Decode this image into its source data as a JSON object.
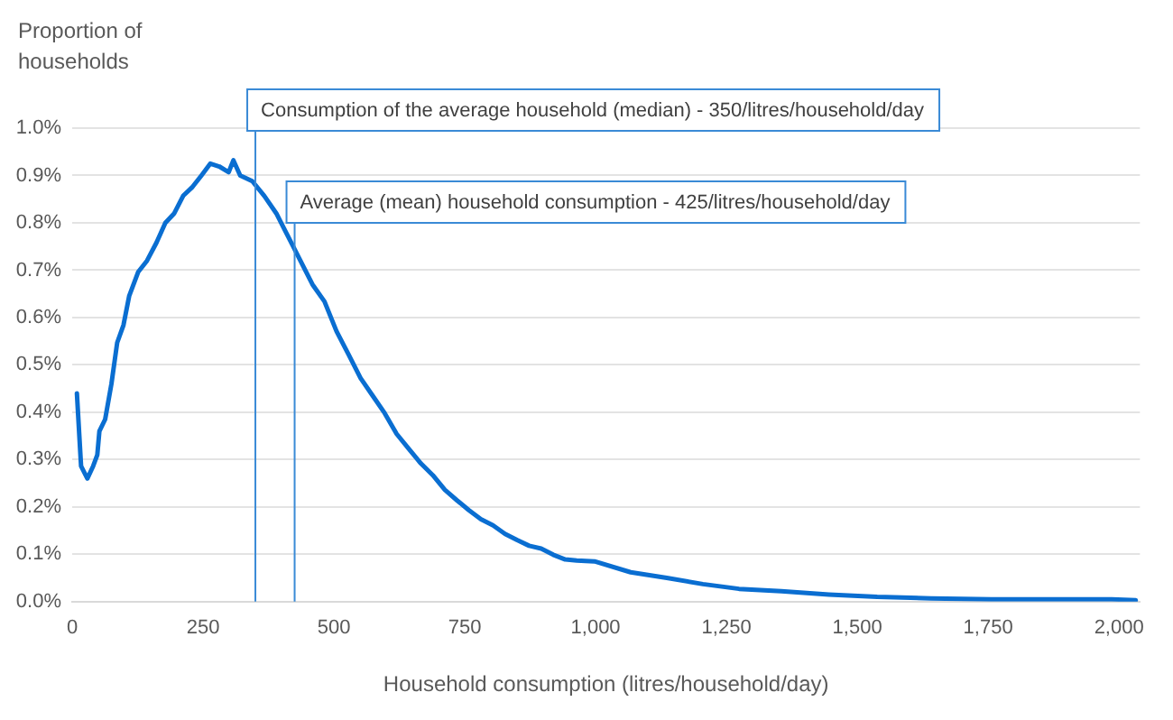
{
  "chart_data": {
    "type": "line",
    "ylabel": "Proportion of\nhouseholds",
    "xlabel": "Household consumption (litres/household/day)",
    "series": [
      {
        "color": "#0a6ed1",
        "x": [
          9,
          17,
          29,
          40,
          48,
          52,
          63,
          75,
          86,
          98,
          109,
          126,
          143,
          161,
          178,
          195,
          212,
          230,
          247,
          264,
          281,
          299,
          308,
          321,
          344,
          367,
          390,
          413,
          436,
          459,
          482,
          505,
          528,
          551,
          574,
          597,
          620,
          643,
          666,
          689,
          712,
          735,
          758,
          781,
          804,
          827,
          850,
          873,
          896,
          919,
          942,
          964,
          998,
          1067,
          1136,
          1205,
          1274,
          1355,
          1446,
          1538,
          1641,
          1756,
          1871,
          1986,
          2032
        ],
        "values": [
          0.44,
          0.286,
          0.26,
          0.286,
          0.31,
          0.36,
          0.385,
          0.46,
          0.547,
          0.584,
          0.646,
          0.696,
          0.72,
          0.758,
          0.8,
          0.82,
          0.857,
          0.876,
          0.9,
          0.925,
          0.919,
          0.907,
          0.932,
          0.9,
          0.888,
          0.857,
          0.82,
          0.77,
          0.72,
          0.67,
          0.634,
          0.571,
          0.522,
          0.472,
          0.435,
          0.398,
          0.354,
          0.323,
          0.292,
          0.267,
          0.236,
          0.214,
          0.193,
          0.174,
          0.161,
          0.143,
          0.13,
          0.118,
          0.112,
          0.099,
          0.089,
          0.087,
          0.085,
          0.062,
          0.05,
          0.037,
          0.027,
          0.022,
          0.015,
          0.01,
          0.007,
          0.005,
          0.005,
          0.005,
          0.003
        ]
      }
    ],
    "xlim": [
      0,
      2040
    ],
    "xticks": [
      {
        "value": 0,
        "label": "0"
      },
      {
        "value": 250,
        "label": "250"
      },
      {
        "value": 500,
        "label": "500"
      },
      {
        "value": 750,
        "label": "750"
      },
      {
        "value": 1000,
        "label": "1,000"
      },
      {
        "value": 1250,
        "label": "1,250"
      },
      {
        "value": 1500,
        "label": "1,500"
      },
      {
        "value": 1750,
        "label": "1,750"
      },
      {
        "value": 2000,
        "label": "2,000"
      }
    ],
    "ylim": [
      0,
      1.0
    ],
    "yticks": [
      {
        "value": 0,
        "label": "0.0%"
      },
      {
        "value": 0.1,
        "label": "0.1%"
      },
      {
        "value": 0.2,
        "label": "0.2%"
      },
      {
        "value": 0.3,
        "label": "0.3%"
      },
      {
        "value": 0.4,
        "label": "0.4%"
      },
      {
        "value": 0.5,
        "label": "0.5%"
      },
      {
        "value": 0.6,
        "label": "0.6%"
      },
      {
        "value": 0.7,
        "label": "0.7%"
      },
      {
        "value": 0.8,
        "label": "0.8%"
      },
      {
        "value": 0.9,
        "label": "0.9%"
      },
      {
        "value": 1.0,
        "label": "1.0%"
      }
    ],
    "grid": "y",
    "legend": false,
    "marker": "none",
    "line_style": "solid",
    "ref_lines": [
      {
        "axis": "x",
        "value": 350,
        "label": "Consumption of the average household (median) - 350/litres/household/day",
        "color": "#3a8ad6"
      },
      {
        "axis": "x",
        "value": 425,
        "label": "Average (mean) household consumption - 425/litres/household/day",
        "color": "#3a8ad6"
      }
    ]
  }
}
